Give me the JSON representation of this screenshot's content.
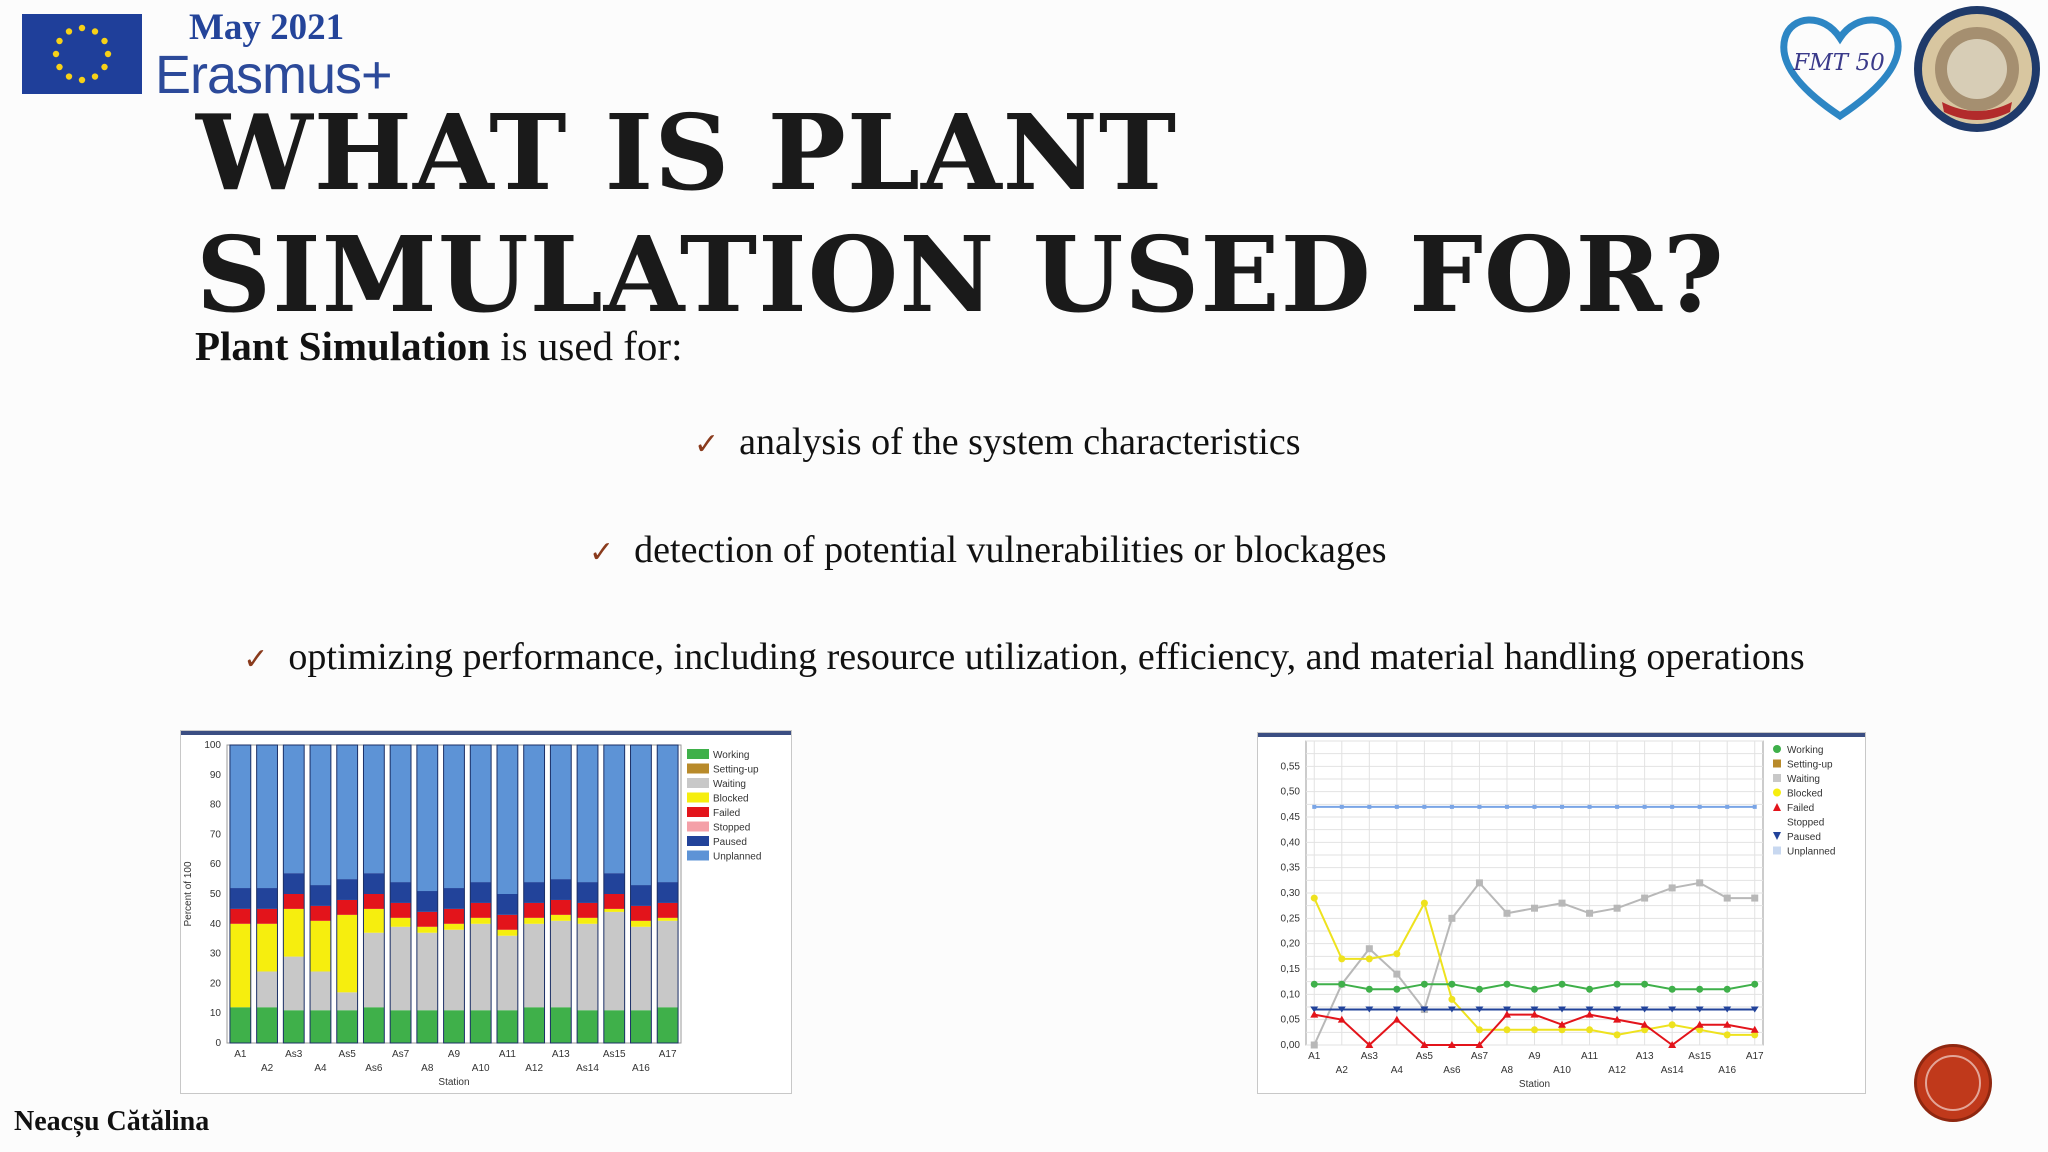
{
  "brand": {
    "date": "May 2021",
    "name": "Erasmus+"
  },
  "logos": {
    "right_logo_text": "FMT 50"
  },
  "title": {
    "line1": "WHAT IS PLANT",
    "line2": "SIMULATION USED FOR?"
  },
  "intro": {
    "bold": "Plant Simulation",
    "rest": " is used for:"
  },
  "bullets": [
    "analysis of the system characteristics",
    "detection of potential vulnerabilities or blockages",
    "optimizing performance, including resource utilization, efficiency, and material handling operations"
  ],
  "author": "Neacșu Cătălina",
  "chart_data": [
    {
      "type": "bar",
      "stacked": true,
      "ylabel": "Percent of 100",
      "xlabel": "Station",
      "ylim": [
        0,
        100
      ],
      "yticks": [
        "0",
        "10",
        "20",
        "30",
        "40",
        "50",
        "60",
        "70",
        "80",
        "90",
        "100"
      ],
      "categories": [
        "A1",
        "A2",
        "As3",
        "A4",
        "As5",
        "As6",
        "As7",
        "A8",
        "A9",
        "A10",
        "A11",
        "A12",
        "A13",
        "As14",
        "As15",
        "A16",
        "A17"
      ],
      "legend": [
        "Working",
        "Setting-up",
        "Waiting",
        "Blocked",
        "Failed",
        "Stopped",
        "Paused",
        "Unplanned"
      ],
      "legend_position": "right",
      "series": [
        {
          "name": "Working",
          "color": "#3fb04a",
          "values": [
            12,
            12,
            11,
            11,
            11,
            12,
            11,
            11,
            11,
            11,
            11,
            12,
            12,
            11,
            11,
            11,
            12
          ]
        },
        {
          "name": "Waiting",
          "color": "#c8c8c8",
          "values": [
            0,
            12,
            18,
            13,
            6,
            25,
            28,
            26,
            27,
            29,
            25,
            28,
            29,
            29,
            33,
            28,
            29
          ]
        },
        {
          "name": "Blocked",
          "color": "#f6ee0e",
          "values": [
            28,
            16,
            16,
            17,
            26,
            8,
            3,
            2,
            2,
            2,
            2,
            2,
            2,
            2,
            1,
            2,
            1
          ]
        },
        {
          "name": "Failed",
          "color": "#e3141b",
          "values": [
            5,
            5,
            5,
            5,
            5,
            5,
            5,
            5,
            5,
            5,
            5,
            5,
            5,
            5,
            5,
            5,
            5
          ]
        },
        {
          "name": "Paused",
          "color": "#22439a",
          "values": [
            7,
            7,
            7,
            7,
            7,
            7,
            7,
            7,
            7,
            7,
            7,
            7,
            7,
            7,
            7,
            7,
            7
          ]
        },
        {
          "name": "Unplanned",
          "color": "#5d93d6",
          "values": [
            48,
            48,
            43,
            47,
            45,
            43,
            46,
            49,
            48,
            46,
            50,
            46,
            45,
            46,
            43,
            47,
            46
          ]
        }
      ]
    },
    {
      "type": "line",
      "xlabel": "Station",
      "ylim": [
        0,
        0.6
      ],
      "yticks": [
        "0,00",
        "0,05",
        "0,10",
        "0,15",
        "0,20",
        "0,25",
        "0,30",
        "0,35",
        "0,40",
        "0,45",
        "0,50",
        "0,55"
      ],
      "categories": [
        "A1",
        "A2",
        "As3",
        "A4",
        "As5",
        "As6",
        "As7",
        "A8",
        "A9",
        "A10",
        "A11",
        "A12",
        "A13",
        "As14",
        "As15",
        "A16",
        "A17"
      ],
      "legend": [
        "Working",
        "Setting-up",
        "Waiting",
        "Blocked",
        "Failed",
        "Stopped",
        "Paused",
        "Unplanned"
      ],
      "legend_position": "right",
      "series": [
        {
          "name": "Unplanned",
          "color": "#7aa5e6",
          "values": [
            0.47,
            0.47,
            0.47,
            0.47,
            0.47,
            0.47,
            0.47,
            0.47,
            0.47,
            0.47,
            0.47,
            0.47,
            0.47,
            0.47,
            0.47,
            0.47,
            0.47
          ]
        },
        {
          "name": "Waiting",
          "color": "#b8b8b8",
          "values": [
            0,
            0.12,
            0.19,
            0.14,
            0.07,
            0.25,
            0.32,
            0.26,
            0.27,
            0.28,
            0.26,
            0.27,
            0.29,
            0.31,
            0.32,
            0.29,
            0.29
          ]
        },
        {
          "name": "Blocked",
          "color": "#eee21e",
          "values": [
            0.29,
            0.17,
            0.17,
            0.18,
            0.28,
            0.09,
            0.03,
            0.03,
            0.03,
            0.03,
            0.03,
            0.02,
            0.03,
            0.04,
            0.03,
            0.02,
            0.02
          ]
        },
        {
          "name": "Working",
          "color": "#3fb04a",
          "values": [
            0.12,
            0.12,
            0.11,
            0.11,
            0.12,
            0.12,
            0.11,
            0.12,
            0.11,
            0.12,
            0.11,
            0.12,
            0.12,
            0.11,
            0.11,
            0.11,
            0.12
          ]
        },
        {
          "name": "Paused",
          "color": "#22439a",
          "values": [
            0.07,
            0.07,
            0.07,
            0.07,
            0.07,
            0.07,
            0.07,
            0.07,
            0.07,
            0.07,
            0.07,
            0.07,
            0.07,
            0.07,
            0.07,
            0.07,
            0.07
          ]
        },
        {
          "name": "Failed",
          "color": "#e3141b",
          "values": [
            0.06,
            0.05,
            0.0,
            0.05,
            0.0,
            0.0,
            0.0,
            0.06,
            0.06,
            0.04,
            0.06,
            0.05,
            0.04,
            0.0,
            0.04,
            0.04,
            0.03
          ]
        }
      ]
    }
  ]
}
